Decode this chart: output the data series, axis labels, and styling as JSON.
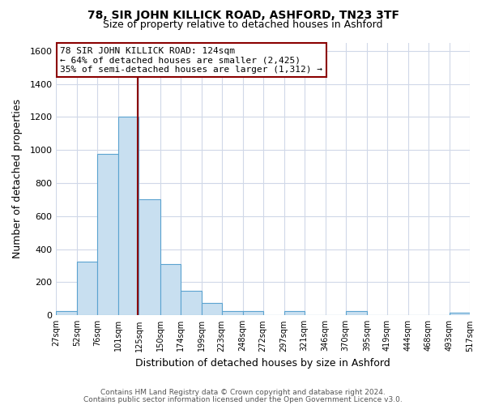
{
  "title": "78, SIR JOHN KILLICK ROAD, ASHFORD, TN23 3TF",
  "subtitle": "Size of property relative to detached houses in Ashford",
  "xlabel": "Distribution of detached houses by size in Ashford",
  "ylabel": "Number of detached properties",
  "bin_edges": [
    27,
    52,
    76,
    101,
    125,
    150,
    174,
    199,
    223,
    248,
    272,
    297,
    321,
    346,
    370,
    395,
    419,
    444,
    468,
    493,
    517
  ],
  "bar_heights": [
    25,
    325,
    975,
    1200,
    700,
    310,
    150,
    75,
    25,
    25,
    0,
    25,
    0,
    0,
    25,
    0,
    0,
    0,
    0,
    15
  ],
  "bar_color": "#c8dff0",
  "bar_edge_color": "#5ba3d0",
  "property_size": 124,
  "vline_color": "#8b0000",
  "annotation_line1": "78 SIR JOHN KILLICK ROAD: 124sqm",
  "annotation_line2": "← 64% of detached houses are smaller (2,425)",
  "annotation_line3": "35% of semi-detached houses are larger (1,312) →",
  "annotation_box_edge": "#8b0000",
  "annotation_fontsize": 8.0,
  "ylim": [
    0,
    1650
  ],
  "yticks": [
    0,
    200,
    400,
    600,
    800,
    1000,
    1200,
    1400,
    1600
  ],
  "footer_line1": "Contains HM Land Registry data © Crown copyright and database right 2024.",
  "footer_line2": "Contains public sector information licensed under the Open Government Licence v3.0.",
  "background_color": "#ffffff",
  "grid_color": "#d0d8e8"
}
